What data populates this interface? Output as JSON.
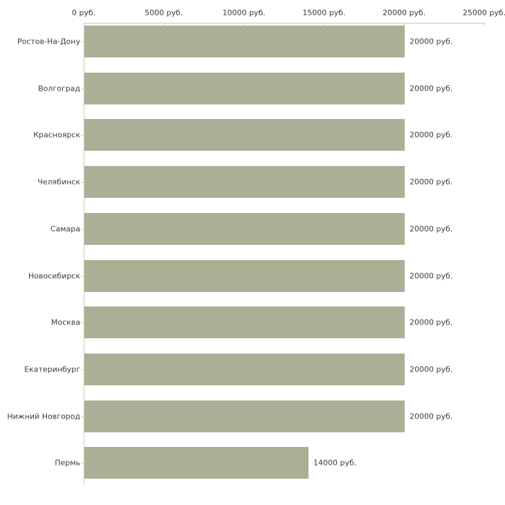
{
  "chart_data": {
    "type": "bar",
    "orientation": "horizontal",
    "title": "",
    "xlabel": "",
    "ylabel": "",
    "categories": [
      "Ростов-На-Дону",
      "Волгоград",
      "Красноярск",
      "Челябинск",
      "Самара",
      "Новосибирск",
      "Москва",
      "Екатеринбург",
      "Нижний Новгород",
      "Пермь"
    ],
    "values": [
      20000,
      20000,
      20000,
      20000,
      20000,
      20000,
      20000,
      20000,
      20000,
      14000
    ],
    "value_labels": [
      "20000 руб.",
      "20000 руб.",
      "20000 руб.",
      "20000 руб.",
      "20000 руб.",
      "20000 руб.",
      "20000 руб.",
      "20000 руб.",
      "20000 руб.",
      "14000 руб."
    ],
    "x_ticks": [
      {
        "value": 0,
        "label": "0 руб."
      },
      {
        "value": 5000,
        "label": "5000 руб."
      },
      {
        "value": 10000,
        "label": "10000 руб."
      },
      {
        "value": 15000,
        "label": "15000 руб."
      },
      {
        "value": 20000,
        "label": "20000 руб."
      },
      {
        "value": 25000,
        "label": "25000 руб."
      }
    ],
    "xlim": [
      0,
      25000
    ],
    "grid": false,
    "legend": "none",
    "bar_color": "#aab096",
    "axis_color": "#c8ccb8",
    "text_color": "#3c3c3c"
  }
}
